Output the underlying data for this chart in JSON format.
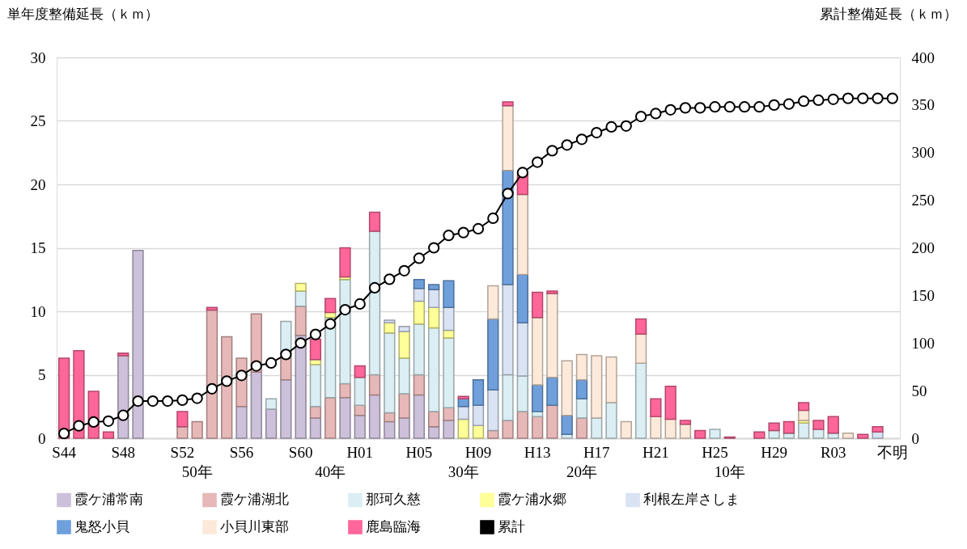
{
  "chart_data": {
    "type": "bar",
    "stacked": true,
    "ylabel": "単年度整備延長（ｋｍ）",
    "y2label": "累計整備延長（ｋｍ）",
    "categories": [
      "S44",
      null,
      null,
      null,
      "S48",
      null,
      null,
      null,
      "S52",
      "50年",
      null,
      null,
      "S56",
      null,
      null,
      null,
      "S60",
      null,
      "40年",
      null,
      "H01",
      null,
      null,
      null,
      "H05",
      null,
      null,
      "30年",
      "H09",
      null,
      null,
      null,
      "H13",
      null,
      null,
      "20年",
      "H17",
      null,
      null,
      null,
      "H21",
      null,
      null,
      null,
      "H25",
      "10年",
      null,
      null,
      "H29",
      null,
      null,
      null,
      "R03",
      null,
      null,
      null,
      "不明"
    ],
    "ylim": [
      0,
      30
    ],
    "yticks": [
      0,
      5,
      10,
      15,
      20,
      25,
      30
    ],
    "y2lim": [
      0,
      400
    ],
    "y2ticks": [
      0,
      50,
      100,
      150,
      200,
      250,
      300,
      350,
      400
    ],
    "grid": "y",
    "legend": "bottom",
    "series": [
      {
        "name": "霞ケ浦常南",
        "color": "#ccc0da",
        "values": [
          0,
          0,
          0,
          0,
          6.5,
          14.8,
          0,
          0,
          0,
          0,
          0,
          0,
          2.5,
          5.2,
          2.3,
          4.6,
          8.1,
          1.6,
          0,
          3.2,
          1.8,
          3.4,
          1.3,
          1.6,
          3.4,
          0.9,
          1.4,
          0,
          0,
          0,
          0,
          0,
          0,
          0,
          0,
          0,
          0,
          0,
          0,
          0,
          0,
          0,
          0,
          0,
          0,
          0,
          0,
          0,
          0,
          0,
          0,
          0,
          0,
          0,
          0,
          0,
          0
        ]
      },
      {
        "name": "霞ケ浦湖北",
        "color": "#e6b8b7",
        "values": [
          0,
          0,
          0,
          0,
          0,
          0,
          0,
          0,
          0.9,
          1.3,
          10.1,
          8.0,
          3.8,
          4.6,
          0,
          1.7,
          2.3,
          0.9,
          3.2,
          1.1,
          0.8,
          1.6,
          0.7,
          1.9,
          1.6,
          1.2,
          1.0,
          0,
          0,
          0.6,
          1.4,
          2.1,
          1.7,
          2.6,
          0,
          1.6,
          0,
          0,
          0,
          0,
          0,
          0,
          0,
          0,
          0,
          0,
          0,
          0,
          0,
          0,
          0,
          0,
          0,
          0,
          0,
          0,
          0
        ]
      },
      {
        "name": "那珂久慈",
        "color": "#daeef3",
        "values": [
          0,
          0,
          0,
          0,
          0,
          0,
          0,
          0,
          0,
          0,
          0,
          0,
          0,
          0,
          0.8,
          2.9,
          1.2,
          3.3,
          6.3,
          8.2,
          2.2,
          11.3,
          6.3,
          2.8,
          4.0,
          6.6,
          5.5,
          0,
          0,
          0,
          3.6,
          2.8,
          0.4,
          0,
          0.3,
          1.5,
          1.6,
          2.8,
          0,
          5.9,
          0,
          0,
          0,
          0,
          0.7,
          0,
          0,
          0,
          0.6,
          0.4,
          1.2,
          0.7,
          0.4,
          0,
          0,
          0,
          0
        ]
      },
      {
        "name": "霞ケ浦水郷",
        "color": "#ffff99",
        "values": [
          0,
          0,
          0,
          0,
          0,
          0,
          0,
          0,
          0,
          0,
          0,
          0,
          0,
          0,
          0,
          0,
          0.6,
          0.4,
          0.4,
          0.2,
          null,
          0,
          0.8,
          2.1,
          1.8,
          1.6,
          0.6,
          1.5,
          1.0,
          0,
          0,
          0,
          0,
          0,
          0,
          0,
          0,
          0,
          0,
          0,
          0,
          0,
          0,
          0,
          0,
          0,
          0,
          0,
          0,
          null,
          0.2,
          0,
          0,
          0,
          0,
          0,
          0
        ]
      },
      {
        "name": "利根左岸さしま",
        "color": "#dae3f3",
        "values": [
          0,
          0,
          0,
          0,
          0,
          0,
          0,
          0,
          0,
          0,
          0,
          0,
          0,
          0,
          0,
          0,
          0,
          0,
          0,
          0,
          0,
          0,
          0.2,
          0.4,
          1.0,
          1.4,
          1.8,
          1.0,
          1.6,
          3.2,
          7.1,
          4.2,
          0,
          0,
          0,
          0,
          0,
          0,
          0,
          0,
          0,
          0,
          0,
          0,
          0,
          0,
          0,
          0,
          0,
          0,
          0,
          0,
          0,
          0,
          0,
          0.5,
          0
        ]
      },
      {
        "name": "鬼怒小貝",
        "color": "#6fa0dc",
        "values": [
          0,
          0,
          0,
          0,
          0,
          0,
          0,
          0,
          0,
          0,
          0,
          0,
          0,
          0,
          0,
          0,
          0,
          0,
          0,
          0,
          0,
          0,
          0,
          0,
          0.7,
          0.4,
          2.1,
          0.6,
          2.0,
          5.6,
          9.0,
          3.8,
          2.1,
          2.2,
          1.5,
          1.5,
          0,
          0,
          0,
          0,
          0,
          0,
          0,
          0,
          0,
          0,
          0,
          0,
          0,
          0,
          0,
          0,
          0,
          0,
          0,
          0,
          0
        ]
      },
      {
        "name": "小貝川東部",
        "color": "#fde9d9",
        "values": [
          0,
          0,
          0,
          0,
          0,
          0,
          0,
          0,
          0,
          0,
          0,
          0,
          0,
          0,
          0,
          0,
          0,
          0,
          0,
          0,
          0,
          0,
          0,
          0,
          0,
          0,
          0,
          0,
          0,
          2.6,
          5.1,
          6.3,
          5.3,
          6.6,
          4.3,
          2.0,
          4.9,
          3.6,
          1.3,
          2.3,
          1.7,
          1.5,
          1.1,
          0,
          0,
          0,
          0,
          0,
          0,
          0,
          0.8,
          0,
          0,
          0.4,
          0,
          0,
          0
        ]
      },
      {
        "name": "鹿島臨海",
        "color": "#ff6699",
        "values": [
          6.3,
          6.9,
          3.7,
          0.5,
          0.2,
          0,
          0,
          0,
          1.2,
          0,
          0.2,
          0,
          0,
          0,
          0,
          0,
          0,
          1.6,
          1.1,
          2.3,
          0.9,
          1.5,
          0,
          0,
          0,
          0,
          0,
          0.2,
          0,
          0,
          0.3,
          1.6,
          2.0,
          0.2,
          0,
          0,
          0,
          0,
          0,
          1.2,
          1.4,
          2.6,
          0.3,
          0.6,
          0,
          0.1,
          0,
          0.5,
          0.6,
          0.9,
          0.6,
          0.7,
          1.3,
          0,
          0.3,
          0.4,
          0
        ]
      },
      {
        "name": "累計",
        "type": "line",
        "axis": "y2",
        "marker": "circle",
        "color": "#000000",
        "values": [
          5,
          13,
          17,
          18,
          24,
          39,
          39,
          39,
          40,
          42,
          52,
          60,
          66,
          76,
          79,
          88,
          100,
          109,
          120,
          135,
          141,
          158,
          167,
          176,
          189,
          200,
          213,
          216,
          220,
          231,
          257,
          279,
          290,
          302,
          308,
          314,
          321,
          327,
          328,
          338,
          341,
          345,
          347,
          347,
          348,
          348,
          348,
          348,
          350,
          351,
          354,
          355,
          356,
          357,
          357,
          357,
          357
        ]
      }
    ]
  }
}
